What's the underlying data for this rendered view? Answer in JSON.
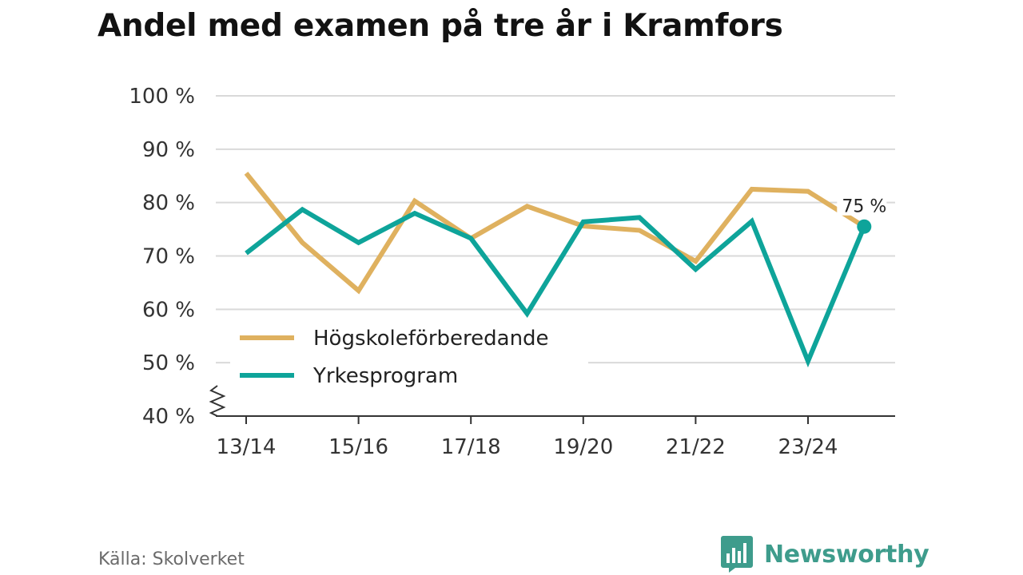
{
  "chart_data": {
    "type": "line",
    "title": "Andel med examen på tre år i Kramfors",
    "xlabel": "",
    "ylabel": "",
    "categories": [
      "13/14",
      "14/15",
      "15/16",
      "16/17",
      "17/18",
      "18/19",
      "19/20",
      "20/21",
      "21/22",
      "22/23",
      "23/24",
      "24/25"
    ],
    "tick_labels": [
      "13/14",
      "15/16",
      "17/18",
      "19/20",
      "21/22",
      "23/24"
    ],
    "ylim": [
      40,
      100
    ],
    "y_ticks": [
      40,
      50,
      60,
      70,
      80,
      90,
      100
    ],
    "y_tick_labels": [
      "40 %",
      "50 %",
      "60 %",
      "70 %",
      "80 %",
      "90 %",
      "100 %"
    ],
    "axis_break": true,
    "grid": true,
    "legend_position": "lower-left",
    "series": [
      {
        "name": "Högskoleförberedande",
        "color": "#dfb15f",
        "values": [
          85.5,
          72.5,
          63.5,
          80.3,
          73.3,
          79.3,
          75.6,
          74.8,
          69.0,
          82.5,
          82.1,
          75.5
        ]
      },
      {
        "name": "Yrkesprogram",
        "color": "#0ea49a",
        "values": [
          70.5,
          78.7,
          72.5,
          78.0,
          73.3,
          59.2,
          76.4,
          77.2,
          67.5,
          76.5,
          50.3,
          75.5
        ]
      }
    ],
    "annotations": [
      {
        "label": "75 %",
        "series": "Yrkesprogram",
        "category": "24/25"
      }
    ]
  },
  "source": "Källa: Skolverket",
  "brand": {
    "name": "Newsworthy",
    "logo_icon": "bar-chart-speech-bubble-icon",
    "color": "#3e9c8c"
  },
  "colors": {
    "grid": "#d9d9d9",
    "axis": "#333333",
    "title": "#121212"
  }
}
